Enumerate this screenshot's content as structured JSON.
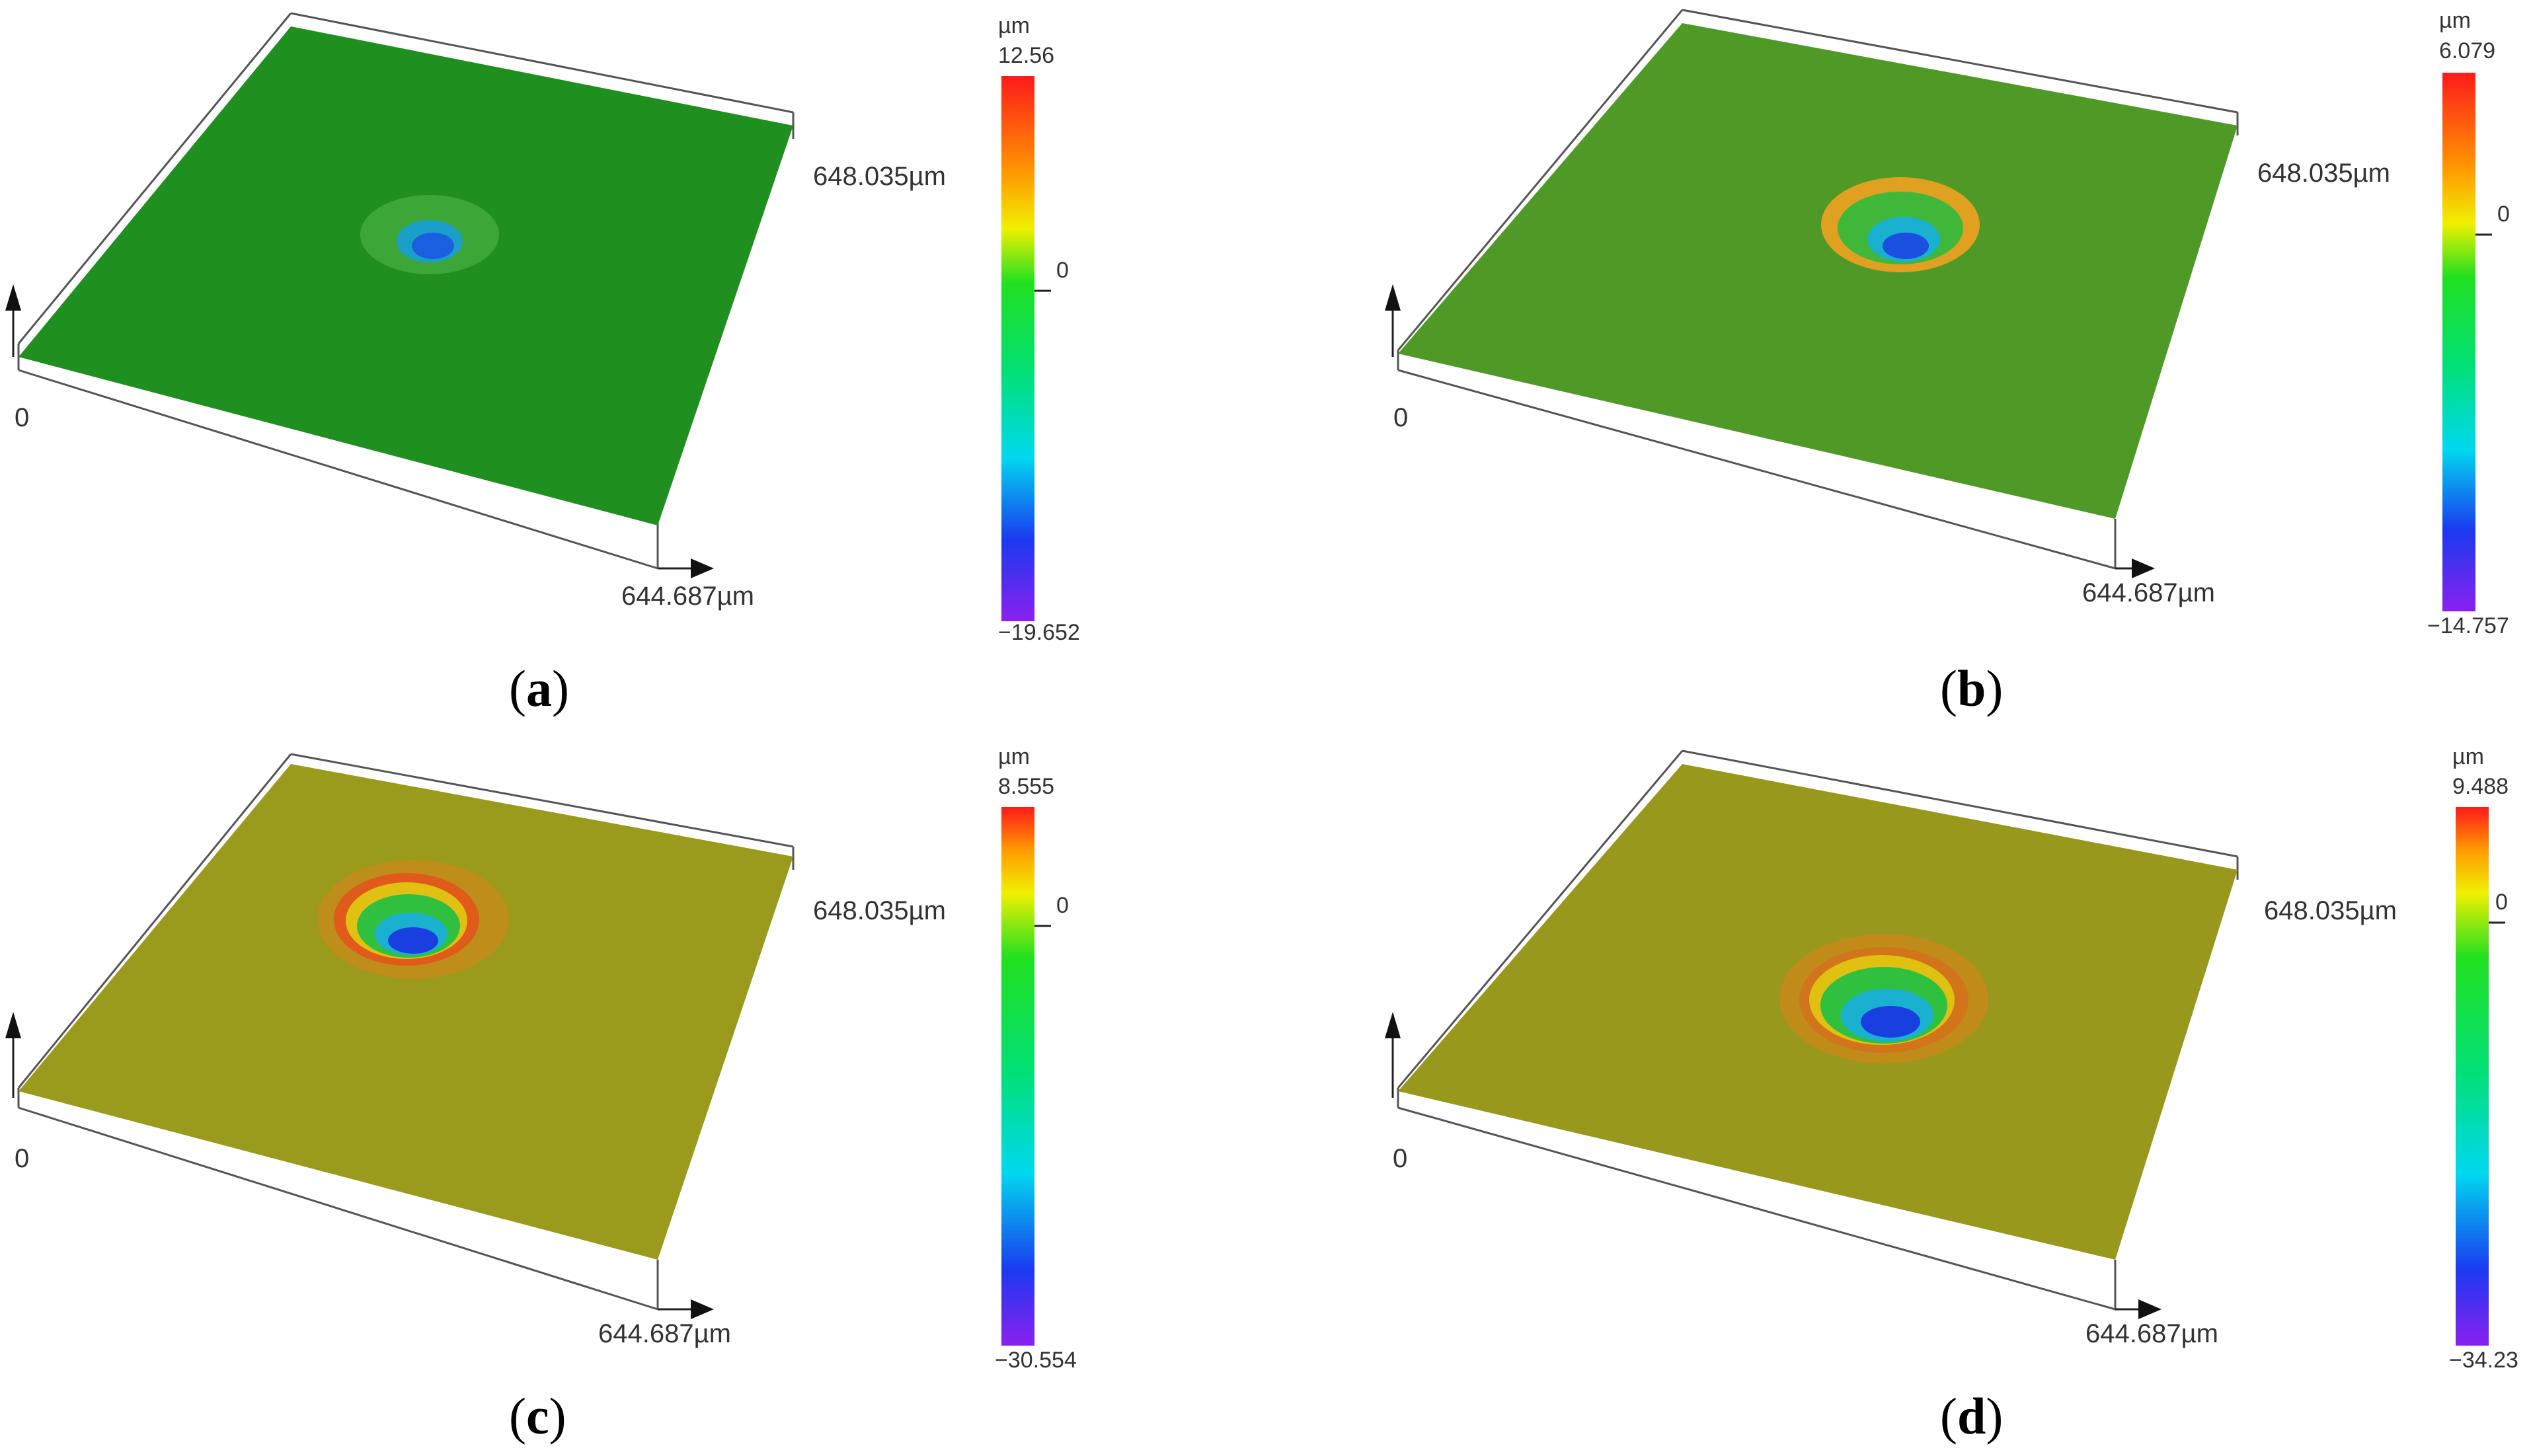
{
  "figure": {
    "panels": [
      {
        "letter": "a",
        "caption_open": "(",
        "caption_close": ")",
        "unit": "µm",
        "scale_max": "12.56",
        "scale_zero": "0",
        "scale_min": "−19.652",
        "x_extent_label": "644.687µm",
        "y_extent_label": "648.035µm",
        "origin_label": "0",
        "surface_color": "#1f8f1f",
        "rim_color": "#3fa83a",
        "crater_color": "#1a5fe0"
      },
      {
        "letter": "b",
        "caption_open": "(",
        "caption_close": ")",
        "unit": "µm",
        "scale_max": "6.079",
        "scale_zero": "0",
        "scale_min": "−14.757",
        "x_extent_label": "644.687µm",
        "y_extent_label": "648.035µm",
        "origin_label": "0",
        "surface_color": "#4f9a26",
        "rim_color": "#e0a020",
        "crater_color": "#1a4fe0"
      },
      {
        "letter": "c",
        "caption_open": "(",
        "caption_close": ")",
        "unit": "µm",
        "scale_max": "8.555",
        "scale_zero": "0",
        "scale_min": "−30.554",
        "x_extent_label": "644.687µm",
        "y_extent_label": "648.035µm",
        "origin_label": "0",
        "surface_color": "#9a9a1c",
        "rim_color": "#e05a1a",
        "crater_color": "#1a3fe0"
      },
      {
        "letter": "d",
        "caption_open": "(",
        "caption_close": ")",
        "unit": "µm",
        "scale_max": "9.488",
        "scale_zero": "0",
        "scale_min": "−34.23",
        "x_extent_label": "644.687µm",
        "y_extent_label": "648.035µm",
        "origin_label": "0",
        "surface_color": "#98981c",
        "rim_color": "#d2741a",
        "crater_color": "#1a3fe0"
      }
    ]
  }
}
